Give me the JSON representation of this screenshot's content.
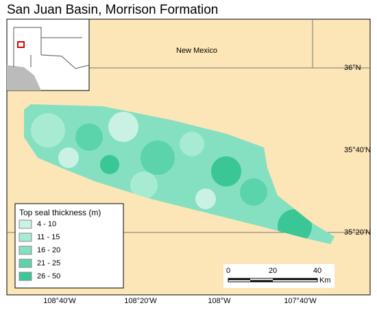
{
  "title": "San Juan Basin, Morrison Formation",
  "state_label": "New Mexico",
  "latitude_labels": [
    "36°N",
    "35°40'N",
    "35°20'N"
  ],
  "longitude_labels": [
    "108°40'W",
    "108°20'W",
    "108°W",
    "107°40'W"
  ],
  "legend": {
    "title": "Top seal thickness (m)",
    "items": [
      {
        "label": "4 - 10",
        "color": "#c9f2e4"
      },
      {
        "label": "11 - 15",
        "color": "#a8ebd3"
      },
      {
        "label": "16 - 20",
        "color": "#84e0c0"
      },
      {
        "label": "21 - 25",
        "color": "#5cd4ab"
      },
      {
        "label": "26 - 50",
        "color": "#3bc795"
      }
    ]
  },
  "scale_bar": {
    "labels": [
      "0",
      "20",
      "40"
    ],
    "unit": "Km"
  }
}
